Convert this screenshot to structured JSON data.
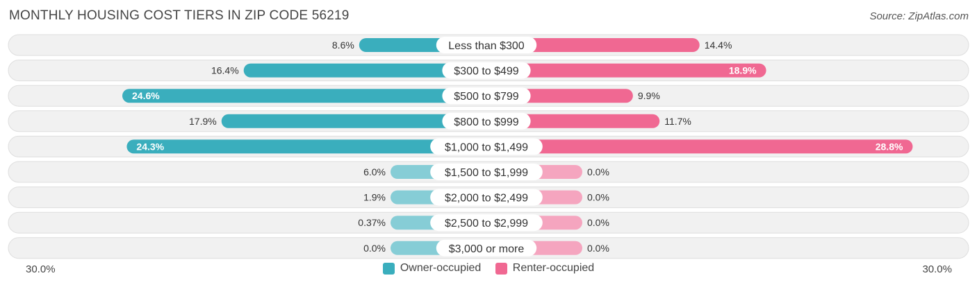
{
  "header": {
    "title": "MONTHLY HOUSING COST TIERS IN ZIP CODE 56219",
    "source": "Source: ZipAtlas.com"
  },
  "axis": {
    "left_label": "30.0%",
    "right_label": "30.0%"
  },
  "legend": {
    "owner_label": "Owner-occupied",
    "renter_label": "Renter-occupied"
  },
  "colors": {
    "owner": "#3aaebd",
    "owner_light": "#86cdd6",
    "renter": "#f06892",
    "renter_light": "#f5a5bf",
    "row_bg": "#f1f1f1",
    "row_border": "#dedede"
  },
  "chart_data": {
    "type": "bar",
    "orientation": "horizontal-diverging",
    "categories": [
      "Less than $300",
      "$300 to $499",
      "$500 to $799",
      "$800 to $999",
      "$1,000 to $1,499",
      "$1,500 to $1,999",
      "$2,000 to $2,499",
      "$2,500 to $2,999",
      "$3,000 or more"
    ],
    "series": [
      {
        "name": "Owner-occupied",
        "values": [
          8.6,
          16.4,
          24.6,
          17.9,
          24.3,
          6.0,
          1.9,
          0.37,
          0.0
        ],
        "labels": [
          "8.6%",
          "16.4%",
          "24.6%",
          "17.9%",
          "24.3%",
          "6.0%",
          "1.9%",
          "0.37%",
          "0.0%"
        ]
      },
      {
        "name": "Renter-occupied",
        "values": [
          14.4,
          18.9,
          9.9,
          11.7,
          28.8,
          0.0,
          0.0,
          0.0,
          0.0
        ],
        "labels": [
          "14.4%",
          "18.9%",
          "9.9%",
          "11.7%",
          "28.8%",
          "0.0%",
          "0.0%",
          "0.0%",
          "0.0%"
        ]
      }
    ],
    "xlim": [
      -30,
      30
    ]
  }
}
